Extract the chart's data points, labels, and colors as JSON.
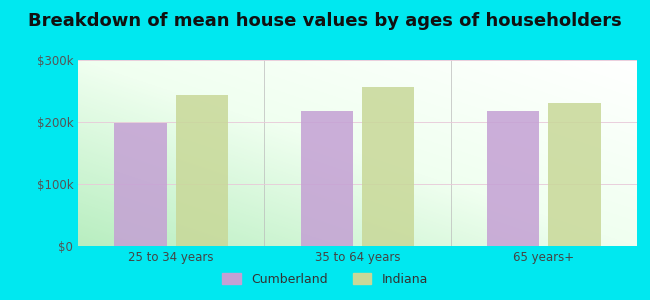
{
  "title": "Breakdown of mean house values by ages of householders",
  "categories": [
    "25 to 34 years",
    "35 to 64 years",
    "65 years+"
  ],
  "cumberland_values": [
    198000,
    218000,
    218000
  ],
  "indiana_values": [
    243000,
    257000,
    230000
  ],
  "cumberland_color": "#c4a0d4",
  "indiana_color": "#c8d898",
  "background_color": "#00e8f0",
  "ylim": [
    0,
    300000
  ],
  "yticks": [
    0,
    100000,
    200000,
    300000
  ],
  "ytick_labels": [
    "$0",
    "$100k",
    "$200k",
    "$300k"
  ],
  "bar_width": 0.28,
  "bar_gap": 0.05,
  "legend_labels": [
    "Cumberland",
    "Indiana"
  ],
  "title_fontsize": 13,
  "tick_fontsize": 8.5,
  "legend_fontsize": 9
}
